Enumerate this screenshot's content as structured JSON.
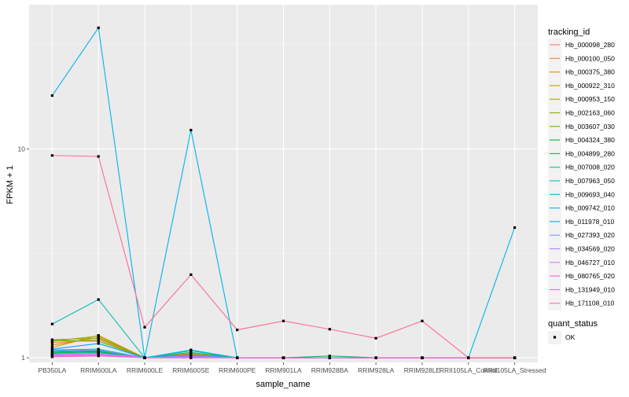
{
  "chart_data": {
    "type": "line",
    "xlabel": "sample_name",
    "ylabel": "FPKM + 1",
    "y_scale": "log10",
    "ylim": [
      0.95,
      49
    ],
    "y_ticks": [
      1,
      10
    ],
    "grid": true,
    "legend_position": "right",
    "categories": [
      "PB350LA",
      "RRIM600LA",
      "RRIM600LE",
      "RRIM600SE",
      "RRIM600PE",
      "RRIM901LA",
      "RRIM928BA",
      "RRIM928LA",
      "RRIM928LE",
      "RRII105LA_Control",
      "RRII105LA_Stressed"
    ],
    "legend_title": "tracking_id",
    "series": [
      {
        "name": "Hb_000098_280",
        "color": "#F8766D",
        "values": [
          1.02,
          1.03,
          1.0,
          1.0,
          1.0,
          1.0,
          1.0,
          1.0,
          1.0,
          1.0,
          1.0
        ]
      },
      {
        "name": "Hb_000100_050",
        "color": "#EC8239",
        "values": [
          1.18,
          1.22,
          1.0,
          1.05,
          1.0,
          1.0,
          1.0,
          1.0,
          1.0,
          1.0,
          1.0
        ]
      },
      {
        "name": "Hb_000375_380",
        "color": "#DB8E00",
        "values": [
          1.12,
          1.28,
          1.0,
          1.04,
          1.0,
          1.0,
          1.0,
          1.0,
          1.0,
          1.0,
          1.0
        ]
      },
      {
        "name": "Hb_000922_310",
        "color": "#C79800",
        "values": [
          1.15,
          1.25,
          1.0,
          1.03,
          1.0,
          1.0,
          1.0,
          1.0,
          1.0,
          1.0,
          1.0
        ]
      },
      {
        "name": "Hb_000953_150",
        "color": "#AEA200",
        "values": [
          1.2,
          1.27,
          1.0,
          1.02,
          1.0,
          1.0,
          1.0,
          1.0,
          1.0,
          1.0,
          1.0
        ]
      },
      {
        "name": "Hb_002163_060",
        "color": "#8FAA00",
        "values": [
          1.22,
          1.24,
          1.0,
          1.03,
          1.0,
          1.0,
          1.0,
          1.0,
          1.0,
          1.0,
          1.0
        ]
      },
      {
        "name": "Hb_003607_030",
        "color": "#64B200",
        "values": [
          1.21,
          1.2,
          1.0,
          1.02,
          1.0,
          1.0,
          1.0,
          1.0,
          1.0,
          1.0,
          1.0
        ]
      },
      {
        "name": "Hb_004324_380",
        "color": "#00B81B",
        "values": [
          1.06,
          1.07,
          1.0,
          1.01,
          1.0,
          1.0,
          1.0,
          1.0,
          1.0,
          1.0,
          1.0
        ]
      },
      {
        "name": "Hb_004899_280",
        "color": "#00BD5C",
        "values": [
          1.07,
          1.08,
          1.0,
          1.06,
          1.0,
          1.0,
          1.02,
          1.0,
          1.0,
          1.0,
          1.0
        ]
      },
      {
        "name": "Hb_007008_020",
        "color": "#00C08E",
        "values": [
          1.05,
          1.06,
          1.0,
          1.02,
          1.0,
          1.0,
          1.0,
          1.0,
          1.0,
          1.0,
          1.0
        ]
      },
      {
        "name": "Hb_007963_050",
        "color": "#00C1B2",
        "values": [
          1.45,
          1.9,
          1.0,
          1.08,
          1.0,
          1.0,
          1.0,
          1.0,
          1.0,
          1.0,
          1.0
        ]
      },
      {
        "name": "Hb_009693_040",
        "color": "#00BCD1",
        "values": [
          1.09,
          1.1,
          1.0,
          1.09,
          1.0,
          1.0,
          1.0,
          1.0,
          1.0,
          1.0,
          1.0
        ]
      },
      {
        "name": "Hb_009742_010",
        "color": "#00B3EB",
        "values": [
          18.0,
          38.0,
          1.0,
          12.3,
          1.0,
          1.0,
          1.0,
          1.0,
          1.0,
          1.0,
          4.2
        ]
      },
      {
        "name": "Hb_011978_010",
        "color": "#00A5FF",
        "values": [
          1.1,
          1.17,
          1.0,
          1.03,
          1.0,
          1.0,
          1.0,
          1.0,
          1.0,
          1.0,
          1.0
        ]
      },
      {
        "name": "Hb_027393_020",
        "color": "#7997FF",
        "values": [
          1.08,
          1.09,
          1.0,
          1.02,
          1.0,
          1.0,
          1.0,
          1.0,
          1.0,
          1.0,
          1.0
        ]
      },
      {
        "name": "Hb_034569_020",
        "color": "#AB82FF",
        "values": [
          1.04,
          1.05,
          1.0,
          1.01,
          1.0,
          1.0,
          1.0,
          1.0,
          1.0,
          1.0,
          1.0
        ]
      },
      {
        "name": "Hb_046727_010",
        "color": "#D078FF",
        "values": [
          1.03,
          1.04,
          1.0,
          1.01,
          1.0,
          1.0,
          1.0,
          1.0,
          1.0,
          1.0,
          1.0
        ]
      },
      {
        "name": "Hb_080765_020",
        "color": "#EF67EB",
        "values": [
          1.02,
          1.03,
          1.0,
          1.01,
          1.0,
          1.0,
          1.0,
          1.0,
          1.0,
          1.0,
          1.0
        ]
      },
      {
        "name": "Hb_131949_010",
        "color": "#FF61C7",
        "values": [
          1.01,
          1.02,
          1.0,
          1.0,
          1.0,
          1.0,
          1.0,
          1.0,
          1.0,
          1.0,
          1.0
        ]
      },
      {
        "name": "Hb_171108_010",
        "color": "#FF6C91",
        "values": [
          9.3,
          9.2,
          1.4,
          2.5,
          1.36,
          1.5,
          1.37,
          1.24,
          1.5,
          1.0,
          1.0
        ]
      }
    ],
    "shape_legend": {
      "title": "quant_status",
      "items": [
        {
          "label": "OK"
        }
      ]
    }
  }
}
